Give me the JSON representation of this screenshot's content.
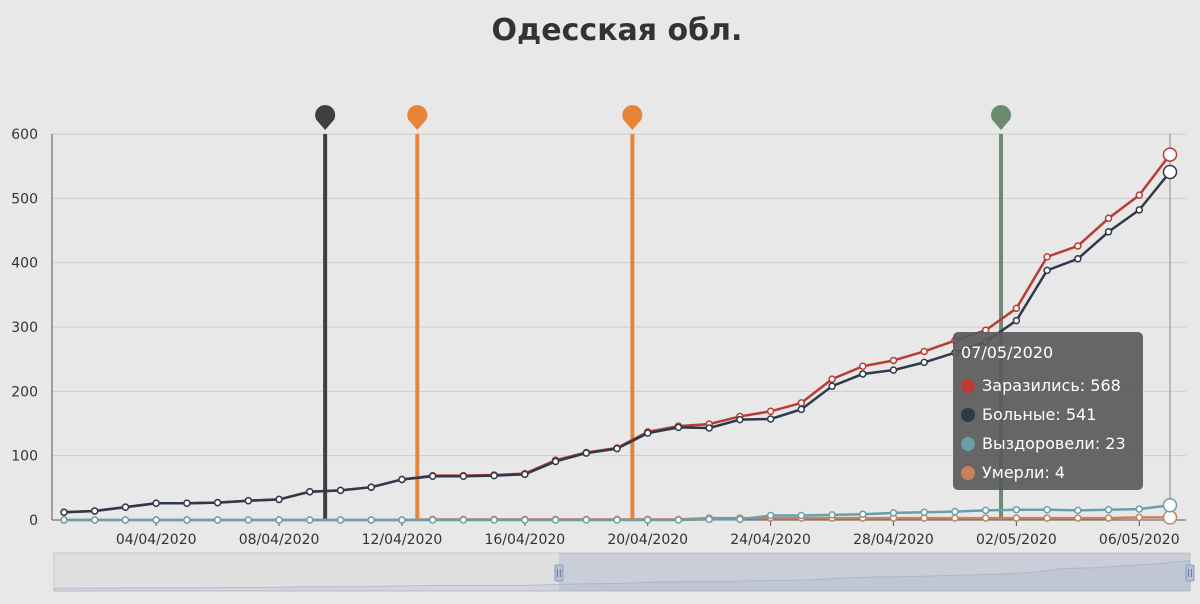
{
  "chart_data": {
    "type": "line",
    "title": "Одесская обл.",
    "xlabel": "",
    "ylabel": "",
    "x_start": "2020-04-01",
    "x": [
      "01/04/2020",
      "02/04/2020",
      "03/04/2020",
      "04/04/2020",
      "05/04/2020",
      "06/04/2020",
      "07/04/2020",
      "08/04/2020",
      "09/04/2020",
      "10/04/2020",
      "11/04/2020",
      "12/04/2020",
      "13/04/2020",
      "14/04/2020",
      "15/04/2020",
      "16/04/2020",
      "17/04/2020",
      "18/04/2020",
      "19/04/2020",
      "20/04/2020",
      "21/04/2020",
      "22/04/2020",
      "23/04/2020",
      "24/04/2020",
      "25/04/2020",
      "26/04/2020",
      "27/04/2020",
      "28/04/2020",
      "29/04/2020",
      "30/04/2020",
      "01/05/2020",
      "02/05/2020",
      "03/05/2020",
      "04/05/2020",
      "05/05/2020",
      "06/05/2020",
      "07/05/2020"
    ],
    "x_ticks": [
      "04/04/2020",
      "08/04/2020",
      "12/04/2020",
      "16/04/2020",
      "20/04/2020",
      "24/04/2020",
      "28/04/2020",
      "02/05/2020",
      "06/05/2020"
    ],
    "x_tick_indices": [
      3,
      7,
      11,
      15,
      19,
      23,
      27,
      31,
      35
    ],
    "ylim": [
      0,
      600
    ],
    "y_ticks": [
      0,
      100,
      200,
      300,
      400,
      500,
      600
    ],
    "grid": true,
    "series": [
      {
        "name": "Заразились",
        "color": "#b83c34",
        "values": [
          12,
          14,
          20,
          26,
          26,
          27,
          30,
          32,
          44,
          46,
          51,
          63,
          69,
          69,
          70,
          72,
          93,
          105,
          112,
          137,
          146,
          149,
          161,
          169,
          182,
          219,
          239,
          248,
          262,
          279,
          295,
          329,
          409,
          426,
          469,
          505,
          568
        ]
      },
      {
        "name": "Больные",
        "color": "#2e3a4c",
        "values": [
          12,
          14,
          20,
          26,
          26,
          27,
          30,
          32,
          44,
          46,
          51,
          63,
          68,
          68,
          69,
          71,
          91,
          104,
          111,
          135,
          144,
          143,
          156,
          157,
          172,
          208,
          227,
          233,
          245,
          260,
          277,
          310,
          388,
          406,
          448,
          482,
          541
        ]
      },
      {
        "name": "Выздоровели",
        "color": "#6a9fa8",
        "values": [
          0,
          0,
          0,
          0,
          0,
          0,
          0,
          0,
          0,
          0,
          0,
          0,
          0,
          0,
          0,
          0,
          0,
          0,
          0,
          0,
          0,
          1,
          1,
          7,
          7,
          8,
          9,
          11,
          12,
          13,
          15,
          16,
          16,
          15,
          16,
          17,
          23
        ]
      },
      {
        "name": "Умерли",
        "color": "#c8825e",
        "values": [
          0,
          0,
          0,
          0,
          0,
          0,
          0,
          0,
          0,
          0,
          0,
          0,
          1,
          1,
          1,
          1,
          1,
          1,
          1,
          1,
          1,
          3,
          3,
          3,
          3,
          3,
          3,
          3,
          3,
          3,
          3,
          3,
          3,
          3,
          3,
          4,
          4
        ]
      }
    ],
    "markers": [
      {
        "index": 8.5,
        "color": "#3f3f3f"
      },
      {
        "index": 11.5,
        "color": "#e8843a"
      },
      {
        "index": 18.5,
        "color": "#e8843a"
      },
      {
        "index": 30.5,
        "color": "#6c8a70"
      }
    ],
    "hover_index": 36
  },
  "tooltip": {
    "date": "07/05/2020",
    "rows": [
      {
        "label": "Заразились: 568",
        "color": "#b83c34"
      },
      {
        "label": "Больные: 541",
        "color": "#2e3a4c"
      },
      {
        "label": "Выздоровели: 23",
        "color": "#6a9fa8"
      },
      {
        "label": "Умерли: 4",
        "color": "#c8825e"
      }
    ]
  },
  "navigator": {
    "range_start_index": 16,
    "range_end_index": 36
  }
}
